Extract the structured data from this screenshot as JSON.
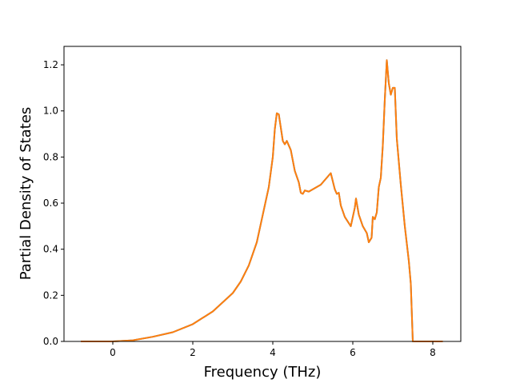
{
  "chart_data": {
    "type": "line",
    "title": "",
    "xlabel": "Frequency (THz)",
    "ylabel": "Partial Density of States",
    "xlim": [
      -1.22,
      8.7
    ],
    "ylim": [
      0,
      1.28
    ],
    "xticks": [
      0,
      2,
      4,
      6,
      8
    ],
    "yticks": [
      0.0,
      0.2,
      0.4,
      0.6,
      0.8,
      1.0,
      1.2
    ],
    "xtick_labels": [
      "0",
      "2",
      "4",
      "6",
      "8"
    ],
    "ytick_labels": [
      "0.0",
      "0.2",
      "0.4",
      "0.6",
      "0.8",
      "1.0",
      "1.2"
    ],
    "grid": false,
    "series": [
      {
        "color": "#1f77b4",
        "x": [
          -0.8,
          0,
          0.5,
          1,
          1.5,
          2,
          2.5,
          3,
          3.2,
          3.4,
          3.6,
          3.75,
          3.9,
          4.0,
          4.05,
          4.1,
          4.15,
          4.25,
          4.3,
          4.35,
          4.45,
          4.55,
          4.65,
          4.7,
          4.75,
          4.8,
          4.9,
          5.0,
          5.2,
          5.4,
          5.45,
          5.55,
          5.6,
          5.65,
          5.7,
          5.8,
          5.95,
          6.05,
          6.08,
          6.15,
          6.25,
          6.35,
          6.4,
          6.47,
          6.5,
          6.55,
          6.6,
          6.65,
          6.7,
          6.75,
          6.8,
          6.85,
          6.9,
          6.95,
          7.0,
          7.05,
          7.1,
          7.2,
          7.3,
          7.4,
          7.45,
          7.5,
          8.25
        ],
        "y": [
          0,
          0,
          0.005,
          0.02,
          0.04,
          0.075,
          0.13,
          0.21,
          0.26,
          0.33,
          0.43,
          0.55,
          0.67,
          0.8,
          0.92,
          0.99,
          0.985,
          0.87,
          0.855,
          0.87,
          0.83,
          0.74,
          0.69,
          0.645,
          0.64,
          0.655,
          0.65,
          0.66,
          0.68,
          0.72,
          0.73,
          0.66,
          0.64,
          0.645,
          0.59,
          0.54,
          0.5,
          0.58,
          0.62,
          0.55,
          0.5,
          0.47,
          0.43,
          0.45,
          0.54,
          0.53,
          0.56,
          0.67,
          0.71,
          0.85,
          1.05,
          1.22,
          1.12,
          1.07,
          1.1,
          1.1,
          0.88,
          0.68,
          0.5,
          0.35,
          0.25,
          0,
          0
        ]
      },
      {
        "color": "#ff7f0e",
        "x": [
          -0.8,
          0,
          0.5,
          1,
          1.5,
          2,
          2.5,
          3,
          3.2,
          3.4,
          3.6,
          3.75,
          3.9,
          4.0,
          4.05,
          4.1,
          4.15,
          4.25,
          4.3,
          4.35,
          4.45,
          4.55,
          4.65,
          4.7,
          4.75,
          4.8,
          4.9,
          5.0,
          5.2,
          5.4,
          5.45,
          5.55,
          5.6,
          5.65,
          5.7,
          5.8,
          5.95,
          6.05,
          6.08,
          6.15,
          6.25,
          6.35,
          6.4,
          6.47,
          6.5,
          6.55,
          6.6,
          6.65,
          6.7,
          6.75,
          6.8,
          6.85,
          6.9,
          6.95,
          7.0,
          7.05,
          7.1,
          7.2,
          7.3,
          7.4,
          7.45,
          7.5,
          8.25
        ],
        "y": [
          0,
          0,
          0.005,
          0.02,
          0.04,
          0.075,
          0.13,
          0.21,
          0.26,
          0.33,
          0.43,
          0.55,
          0.67,
          0.8,
          0.92,
          0.99,
          0.985,
          0.87,
          0.855,
          0.87,
          0.83,
          0.74,
          0.69,
          0.645,
          0.64,
          0.655,
          0.65,
          0.66,
          0.68,
          0.72,
          0.73,
          0.66,
          0.64,
          0.645,
          0.59,
          0.54,
          0.5,
          0.58,
          0.62,
          0.55,
          0.5,
          0.47,
          0.43,
          0.45,
          0.54,
          0.53,
          0.56,
          0.67,
          0.71,
          0.85,
          1.05,
          1.22,
          1.12,
          1.07,
          1.1,
          1.1,
          0.88,
          0.68,
          0.5,
          0.35,
          0.25,
          0,
          0
        ]
      }
    ]
  }
}
